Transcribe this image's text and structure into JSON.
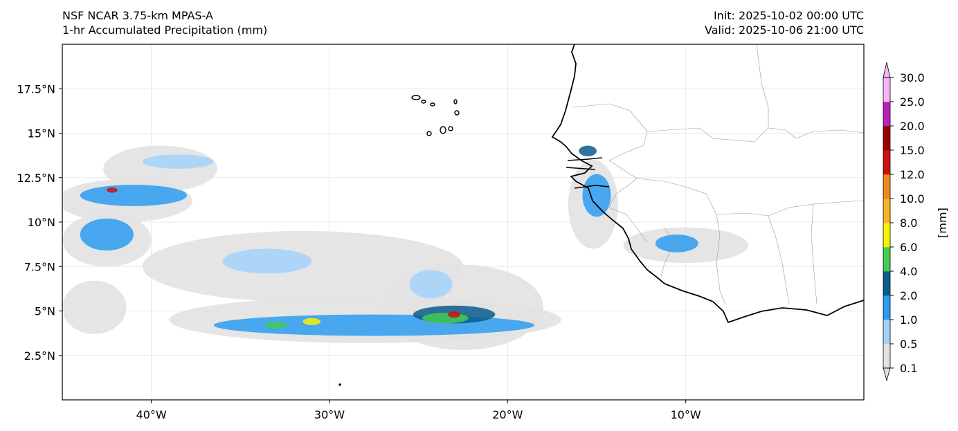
{
  "header": {
    "model": "NSF NCAR 3.75-km MPAS-A",
    "field": "1-hr Accumulated Precipitation (mm)",
    "init": "Init: 2025-10-02 00:00 UTC",
    "valid": "Valid: 2025-10-06 21:00 UTC"
  },
  "axes": {
    "lon_range": [
      -45,
      0
    ],
    "lat_range": [
      0,
      20
    ],
    "lat_ticks": [
      {
        "value": 2.5,
        "label": "2.5°N"
      },
      {
        "value": 5,
        "label": "5°N"
      },
      {
        "value": 7.5,
        "label": "7.5°N"
      },
      {
        "value": 10,
        "label": "10°N"
      },
      {
        "value": 12.5,
        "label": "12.5°N"
      },
      {
        "value": 15,
        "label": "15°N"
      },
      {
        "value": 17.5,
        "label": "17.5°N"
      }
    ],
    "lon_ticks": [
      {
        "value": -40,
        "label": "40°W"
      },
      {
        "value": -30,
        "label": "30°W"
      },
      {
        "value": -20,
        "label": "20°W"
      },
      {
        "value": -10,
        "label": "10°W"
      }
    ],
    "grid": true
  },
  "colorbar": {
    "label": "[mm]",
    "ticks": [
      "0.1",
      "0.5",
      "1.0",
      "2.0",
      "4.0",
      "6.0",
      "8.0",
      "10.0",
      "12.0",
      "15.0",
      "20.0",
      "25.0",
      "30.0"
    ],
    "colors": [
      "#e2e2e2",
      "#a3d2fb",
      "#2d9cf0",
      "#0a5c8c",
      "#44cc55",
      "#f6f20a",
      "#f6b224",
      "#ee8a1c",
      "#cc1111",
      "#9a0000",
      "#bb22bb",
      "#f7b4f7"
    ],
    "extend": "both"
  },
  "precip_regions": [
    {
      "lon": -39.5,
      "lat": 13.0,
      "level": 0,
      "rx": 3.2,
      "ry": 1.3
    },
    {
      "lon": -38.5,
      "lat": 13.4,
      "level": 1,
      "rx": 2.0,
      "ry": 0.4
    },
    {
      "lon": -41.5,
      "lat": 11.2,
      "level": 0,
      "rx": 3.8,
      "ry": 1.2
    },
    {
      "lon": -41.0,
      "lat": 11.5,
      "level": 2,
      "rx": 3.0,
      "ry": 0.6
    },
    {
      "lon": -42.5,
      "lat": 9.0,
      "level": 0,
      "rx": 2.5,
      "ry": 1.5
    },
    {
      "lon": -42.5,
      "lat": 9.3,
      "level": 2,
      "rx": 1.5,
      "ry": 0.9
    },
    {
      "lon": -31.5,
      "lat": 7.5,
      "level": 0,
      "rx": 9.0,
      "ry": 2.0
    },
    {
      "lon": -22.5,
      "lat": 5.2,
      "level": 0,
      "rx": 4.5,
      "ry": 2.4
    },
    {
      "lon": -28.0,
      "lat": 4.5,
      "level": 0,
      "rx": 11.0,
      "ry": 1.3
    },
    {
      "lon": -27.5,
      "lat": 4.2,
      "level": 2,
      "rx": 9.0,
      "ry": 0.6
    },
    {
      "lon": -23.0,
      "lat": 4.8,
      "level": 3,
      "rx": 2.3,
      "ry": 0.5
    },
    {
      "lon": -23.5,
      "lat": 4.6,
      "level": 4,
      "rx": 1.3,
      "ry": 0.3
    },
    {
      "lon": -23.0,
      "lat": 4.8,
      "level": 8,
      "rx": 0.35,
      "ry": 0.18
    },
    {
      "lon": -31.0,
      "lat": 4.4,
      "level": 5,
      "rx": 0.5,
      "ry": 0.2
    },
    {
      "lon": -33.0,
      "lat": 4.2,
      "level": 4,
      "rx": 0.6,
      "ry": 0.2
    },
    {
      "lon": -33.5,
      "lat": 7.8,
      "level": 1,
      "rx": 2.5,
      "ry": 0.7
    },
    {
      "lon": -24.3,
      "lat": 6.5,
      "level": 1,
      "rx": 1.2,
      "ry": 0.8
    },
    {
      "lon": -43.2,
      "lat": 5.2,
      "level": 0,
      "rx": 1.8,
      "ry": 1.5
    },
    {
      "lon": -42.2,
      "lat": 11.8,
      "level": 8,
      "rx": 0.3,
      "ry": 0.15
    },
    {
      "lon": -15.2,
      "lat": 11.0,
      "level": 0,
      "rx": 1.4,
      "ry": 2.5
    },
    {
      "lon": -15.0,
      "lat": 11.5,
      "level": 2,
      "rx": 0.8,
      "ry": 1.2
    },
    {
      "lon": -10.0,
      "lat": 8.7,
      "level": 0,
      "rx": 3.5,
      "ry": 1.0
    },
    {
      "lon": -10.5,
      "lat": 8.8,
      "level": 2,
      "rx": 1.2,
      "ry": 0.5
    },
    {
      "lon": -15.5,
      "lat": 14.0,
      "level": 3,
      "rx": 0.5,
      "ry": 0.3
    }
  ]
}
